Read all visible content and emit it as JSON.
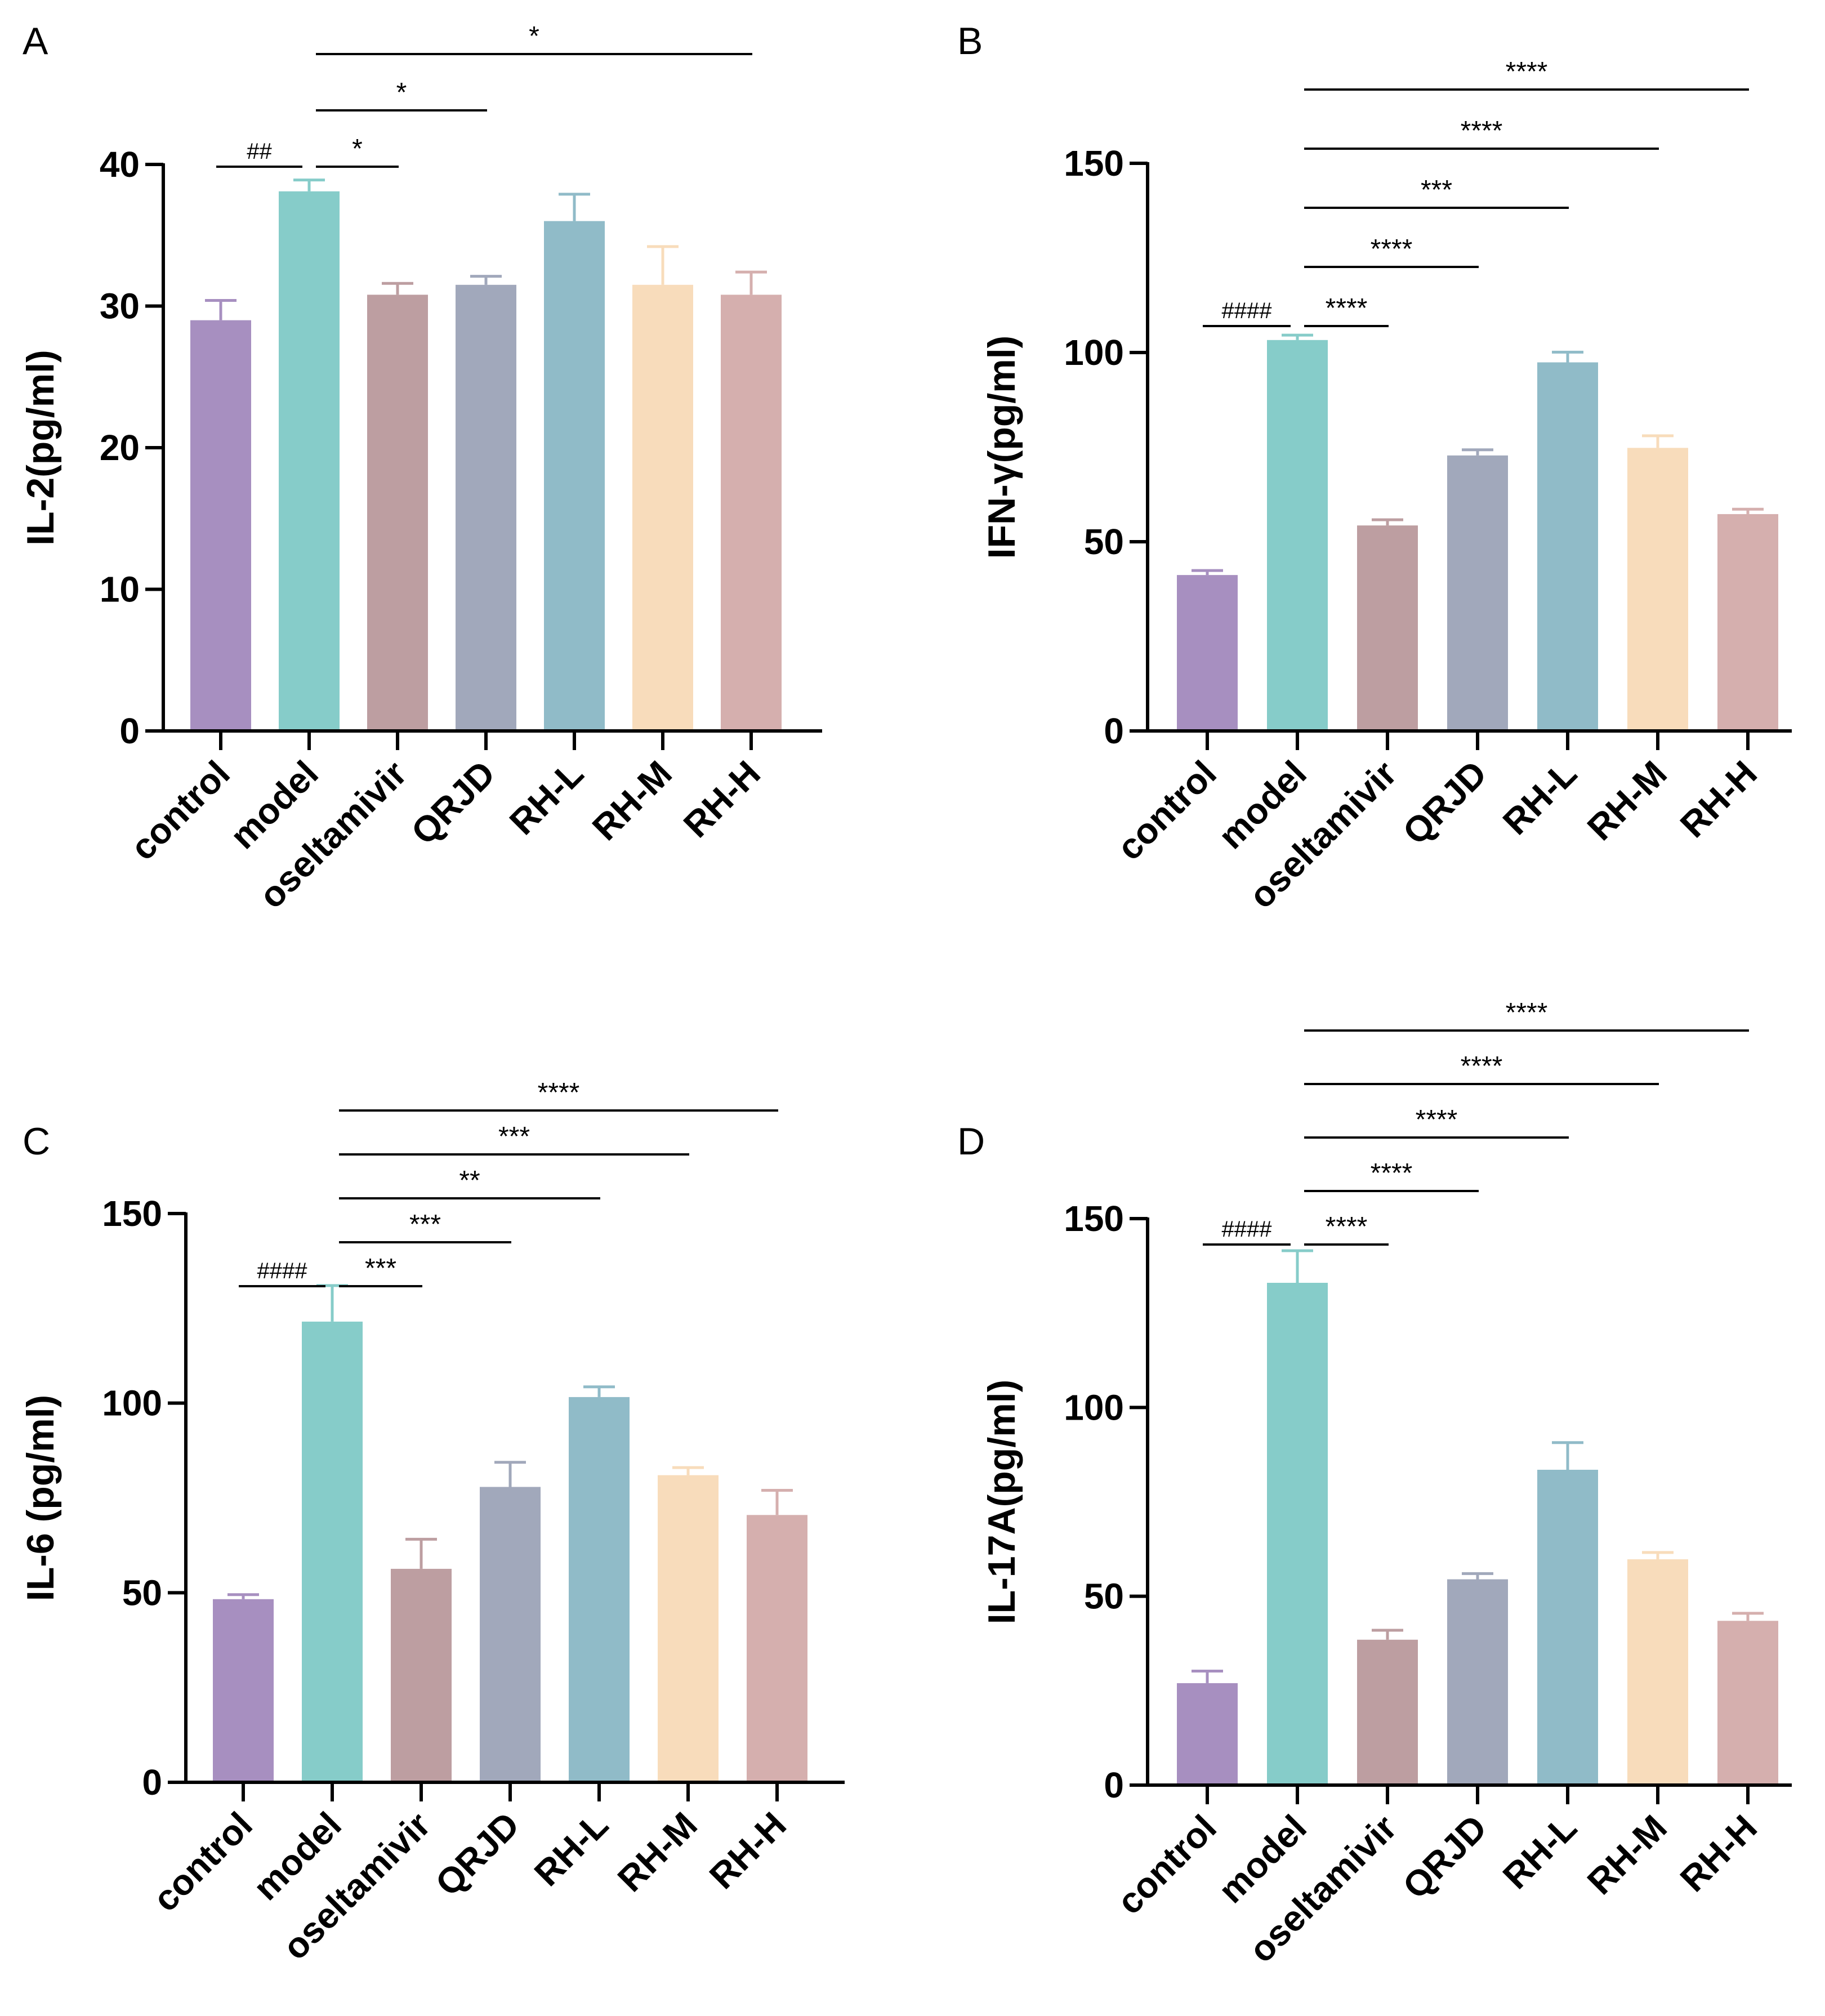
{
  "chart_data": [
    {
      "type": "bar",
      "panel": "A",
      "ylabel": "IL-2(pg/ml)",
      "ylim": [
        0,
        40
      ],
      "yticks": [
        0,
        10,
        20,
        30,
        40
      ],
      "categories": [
        "control",
        "model",
        "oseltamivir",
        "QRJD",
        "RH-L",
        "RH-M",
        "RH-H"
      ],
      "values": [
        29.0,
        38.1,
        30.8,
        31.5,
        36.0,
        31.5,
        30.8
      ],
      "errors": [
        1.4,
        0.8,
        0.8,
        0.6,
        1.9,
        2.7,
        1.6
      ],
      "significance": [
        {
          "from": "control",
          "to": "model",
          "label": "##"
        },
        {
          "from": "model",
          "to": "oseltamivir",
          "label": "*"
        },
        {
          "from": "model",
          "to": "QRJD",
          "label": "*"
        },
        {
          "from": "model",
          "to": "RH-H",
          "label": "*"
        }
      ]
    },
    {
      "type": "bar",
      "panel": "B",
      "ylabel": "IFN-γ(pg/ml)",
      "ylim": [
        0,
        150
      ],
      "yticks": [
        0,
        50,
        100,
        150
      ],
      "categories": [
        "control",
        "model",
        "oseltamivir",
        "QRJD",
        "RH-L",
        "RH-M",
        "RH-H"
      ],
      "values": [
        41.2,
        103.3,
        54.3,
        72.8,
        97.4,
        74.8,
        57.3
      ],
      "errors": [
        1.2,
        1.3,
        1.5,
        1.5,
        2.7,
        3.2,
        1.3
      ],
      "significance": [
        {
          "from": "control",
          "to": "model",
          "label": "####"
        },
        {
          "from": "model",
          "to": "oseltamivir",
          "label": "****"
        },
        {
          "from": "model",
          "to": "QRJD",
          "label": "****"
        },
        {
          "from": "model",
          "to": "RH-L",
          "label": "***"
        },
        {
          "from": "model",
          "to": "RH-M",
          "label": "****"
        },
        {
          "from": "model",
          "to": "RH-H",
          "label": "****"
        }
      ]
    },
    {
      "type": "bar",
      "panel": "C",
      "ylabel": "IL-6 (pg/ml)",
      "ylim": [
        0,
        150
      ],
      "yticks": [
        0,
        50,
        100,
        150
      ],
      "categories": [
        "control",
        "model",
        "oseltamivir",
        "QRJD",
        "RH-L",
        "RH-M",
        "RH-H"
      ],
      "values": [
        48.3,
        121.5,
        56.3,
        77.9,
        101.6,
        81.0,
        70.5
      ],
      "errors": [
        1.2,
        9.5,
        7.8,
        6.5,
        2.7,
        2.0,
        6.5
      ],
      "significance": [
        {
          "from": "control",
          "to": "model",
          "label": "####"
        },
        {
          "from": "model",
          "to": "oseltamivir",
          "label": "***"
        },
        {
          "from": "model",
          "to": "QRJD",
          "label": "***"
        },
        {
          "from": "model",
          "to": "RH-L",
          "label": "**"
        },
        {
          "from": "model",
          "to": "RH-M",
          "label": "***"
        },
        {
          "from": "model",
          "to": "RH-H",
          "label": "****"
        }
      ]
    },
    {
      "type": "bar",
      "panel": "D",
      "ylabel": "IL-17A(pg/ml)",
      "ylim": [
        0,
        150
      ],
      "yticks": [
        0,
        50,
        100,
        150
      ],
      "categories": [
        "control",
        "model",
        "oseltamivir",
        "QRJD",
        "RH-L",
        "RH-M",
        "RH-H"
      ],
      "values": [
        27.0,
        133.0,
        38.5,
        54.5,
        83.5,
        59.8,
        43.5
      ],
      "errors": [
        3.2,
        8.5,
        2.5,
        1.5,
        7.2,
        1.8,
        2.0
      ],
      "significance": [
        {
          "from": "control",
          "to": "model",
          "label": "####"
        },
        {
          "from": "model",
          "to": "oseltamivir",
          "label": "****"
        },
        {
          "from": "model",
          "to": "QRJD",
          "label": "****"
        },
        {
          "from": "model",
          "to": "RH-L",
          "label": "****"
        },
        {
          "from": "model",
          "to": "RH-M",
          "label": "****"
        },
        {
          "from": "model",
          "to": "RH-H",
          "label": "****"
        }
      ]
    }
  ],
  "colors": {
    "bars": [
      "#a78fc0",
      "#86ccc9",
      "#bd9ea1",
      "#a1a8bb",
      "#90bbc8",
      "#f8dcbb",
      "#d5afae"
    ],
    "axis": "#000000"
  }
}
